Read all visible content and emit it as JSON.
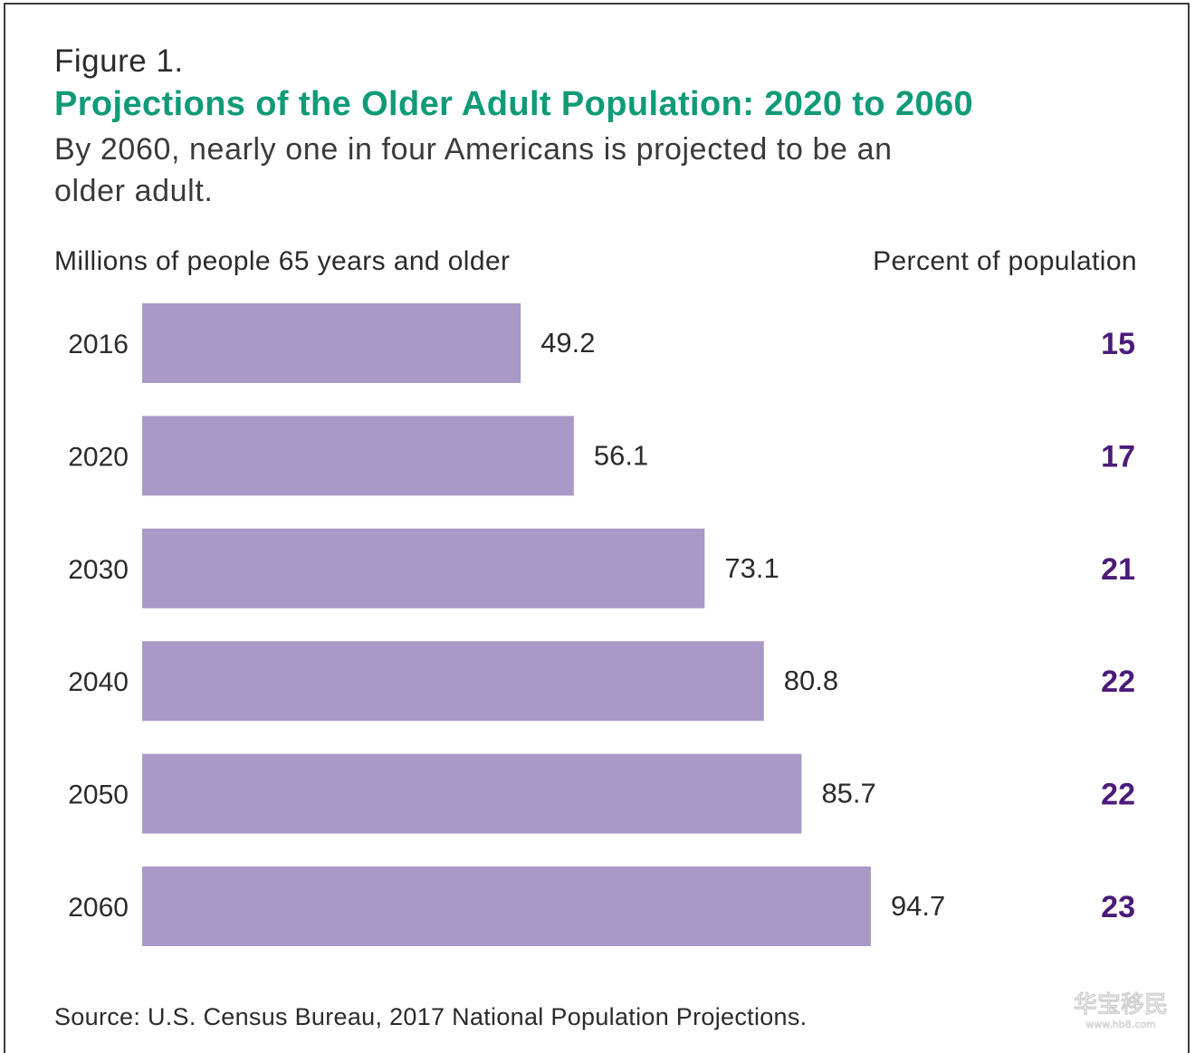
{
  "figure_label": "Figure 1.",
  "title": "Projections of the Older Adult Population: 2020 to 2060",
  "subtitle": "By 2060, nearly one in four Americans is projected to be an older adult.",
  "left_header": "Millions of people 65 years and older",
  "right_header": "Percent of population",
  "source": "Source: U.S. Census Bureau, 2017 National Population Projections.",
  "watermark": "华宝移民 www.hb8.com",
  "colors": {
    "bar": "#a999c6",
    "title": "#0f9a78",
    "percent": "#4b1b78"
  },
  "chart_data": {
    "type": "bar",
    "orientation": "horizontal",
    "categories": [
      "2016",
      "2020",
      "2030",
      "2040",
      "2050",
      "2060"
    ],
    "series": [
      {
        "name": "Millions of people 65 years and older",
        "values": [
          49.2,
          56.1,
          73.1,
          80.8,
          85.7,
          94.7
        ]
      },
      {
        "name": "Percent of population",
        "values": [
          15,
          17,
          21,
          22,
          22,
          23
        ]
      }
    ],
    "value_labels": [
      "49.2",
      "56.1",
      "73.1",
      "80.8",
      "85.7",
      "94.7"
    ],
    "percent_labels": [
      "15",
      "17",
      "21",
      "22",
      "22",
      "23"
    ],
    "grid": false,
    "axes_shown": false
  }
}
